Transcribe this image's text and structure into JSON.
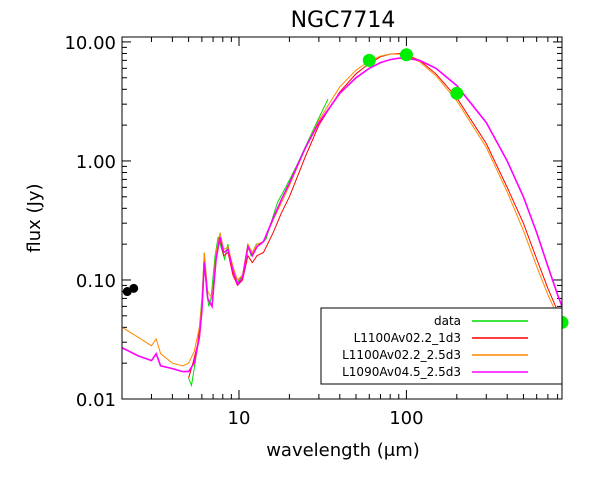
{
  "chart_data": {
    "type": "line",
    "title": "NGC7714",
    "xlabel": "wavelength (μm)",
    "ylabel": "flux (Jy)",
    "x_scale": "log",
    "y_scale": "log",
    "xlim": [
      2,
      850
    ],
    "ylim": [
      0.01,
      11
    ],
    "x_ticks": [
      {
        "value": 10,
        "label": "10"
      },
      {
        "value": 100,
        "label": "100"
      }
    ],
    "y_ticks": [
      {
        "value": 0.01,
        "label": "0.01"
      },
      {
        "value": 0.1,
        "label": "0.10"
      },
      {
        "value": 1,
        "label": "1.00"
      },
      {
        "value": 10,
        "label": "10.00"
      }
    ],
    "legend_position": "bottom-right",
    "photometry": {
      "name": "data",
      "color": "#00ee00",
      "points": [
        {
          "x": 60,
          "y": 7.0
        },
        {
          "x": 100,
          "y": 7.8
        },
        {
          "x": 200,
          "y": 3.7
        },
        {
          "x": 850,
          "y": 0.044
        }
      ]
    },
    "nir_points": {
      "color": "#000000",
      "points": [
        {
          "x": 2.15,
          "y": 0.08
        },
        {
          "x": 2.35,
          "y": 0.085
        }
      ]
    },
    "series": [
      {
        "name": "data",
        "color": "#00dd00",
        "points": [
          [
            5.0,
            0.015
          ],
          [
            5.2,
            0.013
          ],
          [
            5.4,
            0.018
          ],
          [
            5.6,
            0.025
          ],
          [
            5.8,
            0.04
          ],
          [
            6.0,
            0.07
          ],
          [
            6.2,
            0.17
          ],
          [
            6.4,
            0.08
          ],
          [
            6.6,
            0.06
          ],
          [
            6.8,
            0.07
          ],
          [
            7.2,
            0.16
          ],
          [
            7.5,
            0.23
          ],
          [
            7.8,
            0.19
          ],
          [
            8.2,
            0.15
          ],
          [
            8.6,
            0.2
          ],
          [
            9.0,
            0.13
          ],
          [
            9.8,
            0.095
          ],
          [
            10.5,
            0.11
          ],
          [
            11.3,
            0.2
          ],
          [
            11.8,
            0.16
          ],
          [
            12.7,
            0.2
          ],
          [
            13.5,
            0.2
          ],
          [
            14.5,
            0.22
          ],
          [
            15.5,
            0.3
          ],
          [
            17,
            0.45
          ],
          [
            19,
            0.6
          ],
          [
            22,
            0.9
          ],
          [
            26,
            1.5
          ],
          [
            30,
            2.3
          ],
          [
            34,
            3.3
          ]
        ]
      },
      {
        "name": "L1100Av02.2_1d3",
        "color": "#ff0000",
        "points": [
          [
            5.0,
            0.015
          ],
          [
            5.3,
            0.02
          ],
          [
            5.7,
            0.03
          ],
          [
            6.0,
            0.06
          ],
          [
            6.2,
            0.15
          ],
          [
            6.5,
            0.07
          ],
          [
            6.9,
            0.06
          ],
          [
            7.3,
            0.15
          ],
          [
            7.7,
            0.22
          ],
          [
            8.1,
            0.16
          ],
          [
            8.6,
            0.17
          ],
          [
            9.2,
            0.11
          ],
          [
            9.8,
            0.09
          ],
          [
            10.5,
            0.1
          ],
          [
            11.3,
            0.16
          ],
          [
            12,
            0.14
          ],
          [
            12.8,
            0.16
          ],
          [
            14,
            0.17
          ],
          [
            16,
            0.25
          ],
          [
            18,
            0.37
          ],
          [
            20,
            0.5
          ],
          [
            25,
            1.1
          ],
          [
            30,
            2.0
          ],
          [
            40,
            3.8
          ],
          [
            50,
            5.4
          ],
          [
            60,
            6.6
          ],
          [
            70,
            7.5
          ],
          [
            80,
            7.9
          ],
          [
            90,
            8.0
          ],
          [
            100,
            7.8
          ],
          [
            120,
            7.0
          ],
          [
            150,
            5.4
          ],
          [
            200,
            3.4
          ],
          [
            300,
            1.4
          ],
          [
            400,
            0.6
          ],
          [
            500,
            0.3
          ],
          [
            600,
            0.15
          ],
          [
            700,
            0.085
          ],
          [
            800,
            0.055
          ],
          [
            850,
            0.045
          ]
        ]
      },
      {
        "name": "L1100Av02.2_2.5d3",
        "color": "#ff8800",
        "points": [
          [
            2.0,
            0.04
          ],
          [
            2.5,
            0.033
          ],
          [
            3.0,
            0.028
          ],
          [
            3.2,
            0.032
          ],
          [
            3.4,
            0.024
          ],
          [
            4.0,
            0.02
          ],
          [
            4.6,
            0.019
          ],
          [
            5.0,
            0.02
          ],
          [
            5.4,
            0.025
          ],
          [
            5.8,
            0.04
          ],
          [
            6.0,
            0.065
          ],
          [
            6.2,
            0.17
          ],
          [
            6.5,
            0.08
          ],
          [
            6.9,
            0.07
          ],
          [
            7.3,
            0.17
          ],
          [
            7.7,
            0.25
          ],
          [
            8.1,
            0.18
          ],
          [
            8.6,
            0.19
          ],
          [
            9.2,
            0.13
          ],
          [
            9.8,
            0.1
          ],
          [
            10.5,
            0.11
          ],
          [
            11.3,
            0.2
          ],
          [
            12,
            0.17
          ],
          [
            12.8,
            0.2
          ],
          [
            14,
            0.21
          ],
          [
            16,
            0.32
          ],
          [
            18,
            0.45
          ],
          [
            20,
            0.62
          ],
          [
            25,
            1.3
          ],
          [
            30,
            2.2
          ],
          [
            40,
            4.2
          ],
          [
            50,
            5.8
          ],
          [
            60,
            6.9
          ],
          [
            70,
            7.6
          ],
          [
            80,
            7.9
          ],
          [
            90,
            7.9
          ],
          [
            100,
            7.7
          ],
          [
            120,
            6.8
          ],
          [
            150,
            5.2
          ],
          [
            200,
            3.2
          ],
          [
            300,
            1.3
          ],
          [
            400,
            0.55
          ],
          [
            500,
            0.26
          ],
          [
            600,
            0.13
          ],
          [
            700,
            0.075
          ],
          [
            800,
            0.05
          ],
          [
            850,
            0.042
          ]
        ]
      },
      {
        "name": "L1090Av04.5_2.5d3",
        "color": "#ff00ff",
        "points": [
          [
            2.0,
            0.027
          ],
          [
            2.5,
            0.023
          ],
          [
            3.0,
            0.021
          ],
          [
            3.2,
            0.024
          ],
          [
            3.4,
            0.019
          ],
          [
            4.0,
            0.018
          ],
          [
            4.6,
            0.017
          ],
          [
            5.0,
            0.017
          ],
          [
            5.4,
            0.02
          ],
          [
            5.8,
            0.033
          ],
          [
            6.0,
            0.055
          ],
          [
            6.2,
            0.14
          ],
          [
            6.5,
            0.07
          ],
          [
            6.9,
            0.06
          ],
          [
            7.3,
            0.15
          ],
          [
            7.7,
            0.23
          ],
          [
            8.1,
            0.17
          ],
          [
            8.6,
            0.18
          ],
          [
            9.2,
            0.12
          ],
          [
            9.8,
            0.092
          ],
          [
            10.5,
            0.105
          ],
          [
            11.3,
            0.19
          ],
          [
            12,
            0.16
          ],
          [
            12.8,
            0.19
          ],
          [
            14,
            0.21
          ],
          [
            16,
            0.33
          ],
          [
            18,
            0.48
          ],
          [
            20,
            0.65
          ],
          [
            25,
            1.3
          ],
          [
            30,
            2.1
          ],
          [
            40,
            3.7
          ],
          [
            50,
            5.0
          ],
          [
            60,
            6.0
          ],
          [
            70,
            6.7
          ],
          [
            80,
            7.1
          ],
          [
            90,
            7.3
          ],
          [
            100,
            7.3
          ],
          [
            120,
            7.0
          ],
          [
            150,
            6.0
          ],
          [
            200,
            4.3
          ],
          [
            300,
            2.1
          ],
          [
            400,
            1.0
          ],
          [
            500,
            0.5
          ],
          [
            600,
            0.25
          ],
          [
            700,
            0.13
          ],
          [
            800,
            0.075
          ],
          [
            850,
            0.06
          ]
        ]
      }
    ]
  }
}
